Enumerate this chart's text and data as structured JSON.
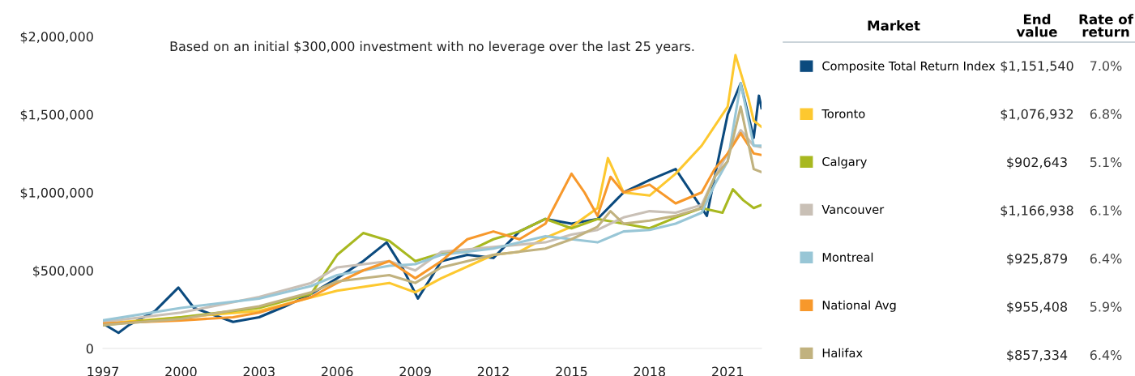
{
  "chart_data": {
    "type": "line",
    "title": "Based on an initial $300,000 investment with no leverage over the last 25 years.",
    "legend_title": "Market",
    "xlim": [
      1997,
      2022.3
    ],
    "xticks": [
      1997,
      2000,
      2003,
      2006,
      2009,
      2012,
      2015,
      2018,
      2021
    ],
    "ylim": [
      0,
      2000000
    ],
    "yticks": [
      0,
      {
        "value": 500000,
        "label": "$500,000"
      },
      {
        "value": 1000000,
        "label": "$1,000,000"
      },
      {
        "value": 1500000,
        "label": "$1,500,000"
      },
      {
        "value": 2000000,
        "label": "$2,000,000"
      }
    ],
    "grid": false,
    "legend": "right",
    "marker": "none",
    "line_style": "solid",
    "annotations": [
      "End value",
      "Rate of return",
      "$1,151,540",
      "7.0%",
      "$1,076,932",
      "6.8%",
      "$902,643",
      "5.1%",
      "$1,166,938",
      "6.1%",
      "$925,879",
      "6.4%",
      "$955,408",
      "5.9%",
      "$857,334",
      "6.4%"
    ],
    "series": [
      {
        "name": "Composite Total Return Index",
        "color": "#0b4a7e",
        "x": [
          1997,
          1997.6,
          1998,
          1999,
          1999.9,
          2000.5,
          2001,
          2002,
          2003,
          2004,
          2005,
          2006,
          2007,
          2007.9,
          2008.5,
          2009.1,
          2010,
          2011,
          2012,
          2013,
          2014,
          2015,
          2016,
          2017,
          2018,
          2019,
          2020.2,
          2020.5,
          2021,
          2021.5,
          2022,
          2022.2,
          2022.3
        ],
        "values": [
          160000,
          100000,
          150000,
          240000,
          390000,
          260000,
          230000,
          170000,
          200000,
          270000,
          350000,
          450000,
          560000,
          680000,
          520000,
          320000,
          560000,
          600000,
          580000,
          750000,
          830000,
          800000,
          830000,
          1000000,
          1080000,
          1150000,
          850000,
          1100000,
          1500000,
          1700000,
          1350000,
          1620000,
          1540000
        ]
      },
      {
        "name": "Toronto",
        "color": "#fdc82f",
        "x": [
          1997,
          2000,
          2003,
          2006,
          2008,
          2009,
          2010,
          2012,
          2013,
          2014,
          2015,
          2016,
          2016.4,
          2017,
          2018,
          2019,
          2020,
          2021,
          2021.3,
          2021.8,
          2022,
          2022.3
        ],
        "values": [
          160000,
          200000,
          240000,
          370000,
          420000,
          360000,
          450000,
          600000,
          620000,
          710000,
          780000,
          900000,
          1220000,
          1000000,
          980000,
          1120000,
          1300000,
          1550000,
          1880000,
          1600000,
          1460000,
          1420000
        ]
      },
      {
        "name": "Calgary",
        "color": "#a8b820",
        "x": [
          1997,
          2000,
          2003,
          2005,
          2006,
          2007,
          2008,
          2009,
          2010,
          2011,
          2012,
          2013,
          2014,
          2015,
          2016,
          2017,
          2018,
          2019,
          2020,
          2020.8,
          2021.2,
          2021.6,
          2022,
          2022.3
        ],
        "values": [
          150000,
          200000,
          260000,
          350000,
          600000,
          740000,
          690000,
          560000,
          610000,
          620000,
          700000,
          750000,
          830000,
          770000,
          830000,
          800000,
          770000,
          840000,
          900000,
          870000,
          1020000,
          950000,
          900000,
          920000
        ]
      },
      {
        "name": "Vancouver",
        "color": "#c9c0b6",
        "x": [
          1997,
          2000,
          2003,
          2005,
          2006,
          2008,
          2009,
          2010,
          2012,
          2014,
          2015,
          2016,
          2017,
          2018,
          2019,
          2020,
          2020.5,
          2021,
          2021.5,
          2022,
          2022.3
        ],
        "values": [
          170000,
          230000,
          330000,
          420000,
          520000,
          560000,
          500000,
          620000,
          650000,
          680000,
          730000,
          760000,
          840000,
          880000,
          870000,
          920000,
          1100000,
          1250000,
          1400000,
          1300000,
          1290000
        ]
      },
      {
        "name": "Montreal",
        "color": "#98c6d6",
        "x": [
          1997,
          2000,
          2003,
          2005,
          2006,
          2008,
          2009,
          2010,
          2012,
          2014,
          2015,
          2016,
          2017,
          2018,
          2019,
          2020,
          2020.5,
          2021,
          2021.5,
          2022,
          2022.3
        ],
        "values": [
          180000,
          260000,
          320000,
          400000,
          470000,
          530000,
          540000,
          600000,
          640000,
          720000,
          700000,
          680000,
          750000,
          760000,
          800000,
          870000,
          1050000,
          1200000,
          1700000,
          1300000,
          1300000
        ]
      },
      {
        "name": "National Avg",
        "color": "#f7982b",
        "x": [
          1997,
          2000,
          2002,
          2003,
          2005,
          2006,
          2007,
          2008,
          2009,
          2010,
          2011,
          2012,
          2013,
          2014,
          2015,
          2015.5,
          2016,
          2016.5,
          2017,
          2018,
          2019,
          2020,
          2020.5,
          2021,
          2021.5,
          2022,
          2022.3
        ],
        "values": [
          160000,
          180000,
          200000,
          230000,
          330000,
          420000,
          500000,
          560000,
          450000,
          560000,
          700000,
          750000,
          700000,
          800000,
          1120000,
          1000000,
          850000,
          1100000,
          1000000,
          1050000,
          930000,
          1000000,
          1150000,
          1250000,
          1380000,
          1250000,
          1240000
        ]
      },
      {
        "name": "Halifax",
        "color": "#c1b27f",
        "x": [
          1997,
          2000,
          2003,
          2005,
          2006,
          2008,
          2009,
          2010,
          2012,
          2014,
          2015,
          2016,
          2016.5,
          2017,
          2018,
          2019,
          2020,
          2020.5,
          2021,
          2021.5,
          2022,
          2022.3
        ],
        "values": [
          150000,
          190000,
          270000,
          360000,
          430000,
          470000,
          420000,
          520000,
          600000,
          640000,
          700000,
          780000,
          880000,
          800000,
          820000,
          850000,
          900000,
          1100000,
          1200000,
          1550000,
          1150000,
          1130000
        ]
      }
    ]
  }
}
